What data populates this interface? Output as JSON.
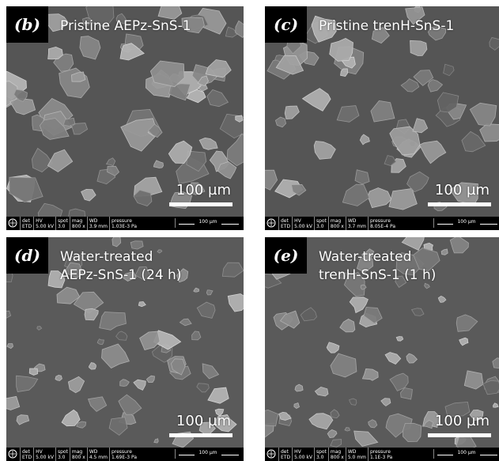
{
  "panels": [
    {
      "label": "(b)",
      "title": "Pristine AEPz-SnS-1",
      "scale": "100 µm",
      "databar": {
        "det_h": "det",
        "det_v": "ETD",
        "hv_h": "HV",
        "hv_v": "5.00 kV",
        "spot_h": "spot",
        "spot_v": "3.0",
        "mag_h": "mag",
        "mag_v": "800 x",
        "wd_h": "WD",
        "wd_v": "3.9 mm",
        "pr_h": "pressure",
        "pr_v": "1.03E-3 Pa",
        "scale": "100 µm"
      }
    },
    {
      "label": "(c)",
      "title": "Pristine trenH-SnS-1",
      "scale": "100 µm",
      "databar": {
        "det_h": "det",
        "det_v": "ETD",
        "hv_h": "HV",
        "hv_v": "5.00 kV",
        "spot_h": "spot",
        "spot_v": "3.0",
        "mag_h": "mag",
        "mag_v": "800 x",
        "wd_h": "WD",
        "wd_v": "3.7 mm",
        "pr_h": "pressure",
        "pr_v": "8.05E-4 Pa",
        "scale": "100 µm"
      }
    },
    {
      "label": "(d)",
      "title": "Water-treated\nAEPz-SnS-1 (24 h)",
      "scale": "100 µm",
      "databar": {
        "det_h": "det",
        "det_v": "ETD",
        "hv_h": "HV",
        "hv_v": "5.00 kV",
        "spot_h": "spot",
        "spot_v": "3.0",
        "mag_h": "mag",
        "mag_v": "800 x",
        "wd_h": "WD",
        "wd_v": "4.5 mm",
        "pr_h": "pressure",
        "pr_v": "1.69E-3 Pa",
        "scale": "100 µm"
      }
    },
    {
      "label": "(e)",
      "title": "Water-treated\ntrenH-SnS-1 (1 h)",
      "scale": "100 µm",
      "databar": {
        "det_h": "det",
        "det_v": "ETD",
        "hv_h": "HV",
        "hv_v": "5.00 kV",
        "spot_h": "spot",
        "spot_v": "3.0",
        "mag_h": "mag",
        "mag_v": "800 x",
        "wd_h": "WD",
        "wd_v": "5.0 mm",
        "pr_h": "pressure",
        "pr_v": "1.1E-3 Pa",
        "scale": "100 µm"
      }
    }
  ],
  "colors": {
    "background": "#5e5e5e",
    "particle_light": "#b8b8b8",
    "particle_dark": "#4a4a4a"
  }
}
